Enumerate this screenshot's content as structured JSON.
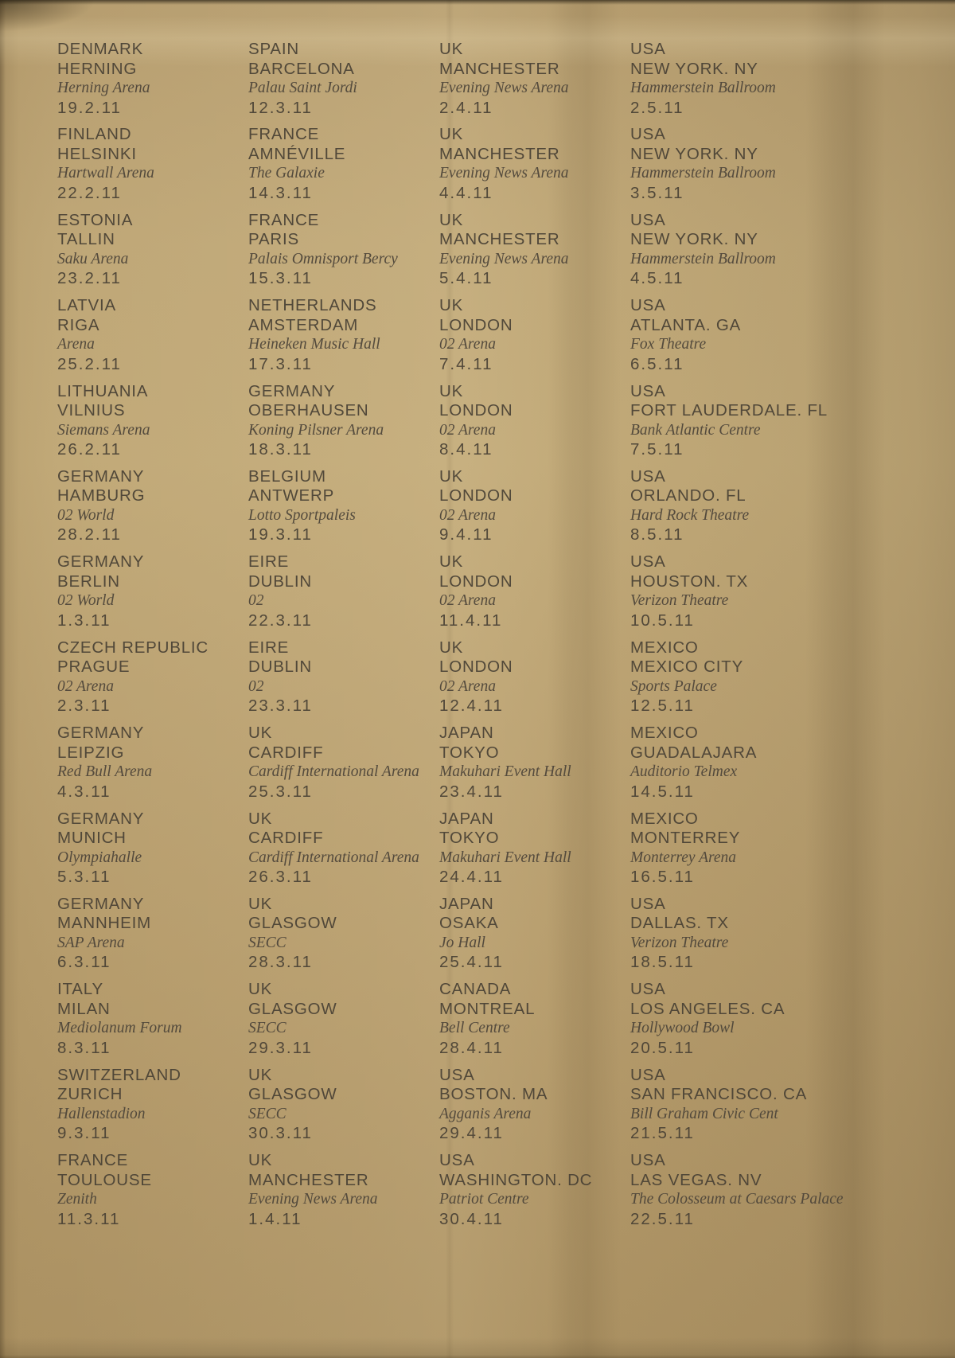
{
  "colors": {
    "paper_gold": "#bca374",
    "paper_edge_dark": "#7e6a47",
    "text_ink": "#4e463b"
  },
  "columns": [
    [
      {
        "country": "DENMARK",
        "city": "HERNING",
        "venue": "Herning Arena",
        "date": "19.2.11"
      },
      {
        "country": "FINLAND",
        "city": "HELSINKI",
        "venue": "Hartwall Arena",
        "date": "22.2.11"
      },
      {
        "country": "ESTONIA",
        "city": "TALLIN",
        "venue": "Saku Arena",
        "date": "23.2.11"
      },
      {
        "country": "LATVIA",
        "city": "RIGA",
        "venue": "Arena",
        "date": "25.2.11"
      },
      {
        "country": "LITHUANIA",
        "city": "VILNIUS",
        "venue": "Siemans Arena",
        "date": "26.2.11"
      },
      {
        "country": "GERMANY",
        "city": "HAMBURG",
        "venue": "02 World",
        "date": "28.2.11"
      },
      {
        "country": "GERMANY",
        "city": "BERLIN",
        "venue": "02 World",
        "date": "1.3.11"
      },
      {
        "country": "CZECH REPUBLIC",
        "city": "PRAGUE",
        "venue": "02 Arena",
        "date": "2.3.11"
      },
      {
        "country": "GERMANY",
        "city": "LEIPZIG",
        "venue": "Red Bull Arena",
        "date": "4.3.11"
      },
      {
        "country": "GERMANY",
        "city": "MUNICH",
        "venue": "Olympiahalle",
        "date": "5.3.11"
      },
      {
        "country": "GERMANY",
        "city": "MANNHEIM",
        "venue": "SAP Arena",
        "date": "6.3.11"
      },
      {
        "country": "ITALY",
        "city": "MILAN",
        "venue": "Mediolanum Forum",
        "date": "8.3.11"
      },
      {
        "country": "SWITZERLAND",
        "city": "ZURICH",
        "venue": "Hallenstadion",
        "date": "9.3.11"
      },
      {
        "country": "FRANCE",
        "city": "TOULOUSE",
        "venue": "Zenith",
        "date": "11.3.11"
      }
    ],
    [
      {
        "country": "SPAIN",
        "city": "BARCELONA",
        "venue": "Palau Saint Jordi",
        "date": "12.3.11"
      },
      {
        "country": "FRANCE",
        "city": "AMNÉVILLE",
        "venue": "The Galaxie",
        "date": "14.3.11"
      },
      {
        "country": "FRANCE",
        "city": "PARIS",
        "venue": "Palais Omnisport Bercy",
        "date": "15.3.11"
      },
      {
        "country": "NETHERLANDS",
        "city": "AMSTERDAM",
        "venue": "Heineken Music Hall",
        "date": "17.3.11"
      },
      {
        "country": "GERMANY",
        "city": "OBERHAUSEN",
        "venue": "Koning Pilsner Arena",
        "date": "18.3.11"
      },
      {
        "country": "BELGIUM",
        "city": "ANTWERP",
        "venue": "Lotto Sportpaleis",
        "date": "19.3.11"
      },
      {
        "country": "EIRE",
        "city": "DUBLIN",
        "venue": "02",
        "date": "22.3.11"
      },
      {
        "country": "EIRE",
        "city": "DUBLIN",
        "venue": "02",
        "date": "23.3.11"
      },
      {
        "country": "UK",
        "city": "CARDIFF",
        "venue": "Cardiff International Arena",
        "date": "25.3.11"
      },
      {
        "country": "UK",
        "city": "CARDIFF",
        "venue": "Cardiff International Arena",
        "date": "26.3.11"
      },
      {
        "country": "UK",
        "city": "GLASGOW",
        "venue": "SECC",
        "date": "28.3.11"
      },
      {
        "country": "UK",
        "city": "GLASGOW",
        "venue": "SECC",
        "date": "29.3.11"
      },
      {
        "country": "UK",
        "city": "GLASGOW",
        "venue": "SECC",
        "date": "30.3.11"
      },
      {
        "country": "UK",
        "city": "MANCHESTER",
        "venue": "Evening News Arena",
        "date": "1.4.11"
      }
    ],
    [
      {
        "country": "UK",
        "city": "MANCHESTER",
        "venue": "Evening News Arena",
        "date": "2.4.11"
      },
      {
        "country": "UK",
        "city": "MANCHESTER",
        "venue": "Evening News Arena",
        "date": "4.4.11"
      },
      {
        "country": "UK",
        "city": "MANCHESTER",
        "venue": "Evening News Arena",
        "date": "5.4.11"
      },
      {
        "country": "UK",
        "city": "LONDON",
        "venue": "02 Arena",
        "date": "7.4.11"
      },
      {
        "country": "UK",
        "city": "LONDON",
        "venue": "02 Arena",
        "date": "8.4.11"
      },
      {
        "country": "UK",
        "city": "LONDON",
        "venue": "02 Arena",
        "date": "9.4.11"
      },
      {
        "country": "UK",
        "city": "LONDON",
        "venue": "02 Arena",
        "date": "11.4.11"
      },
      {
        "country": "UK",
        "city": "LONDON",
        "venue": "02 Arena",
        "date": "12.4.11"
      },
      {
        "country": "JAPAN",
        "city": "TOKYO",
        "venue": "Makuhari Event Hall",
        "date": "23.4.11"
      },
      {
        "country": "JAPAN",
        "city": "TOKYO",
        "venue": "Makuhari Event Hall",
        "date": "24.4.11"
      },
      {
        "country": "JAPAN",
        "city": "OSAKA",
        "venue": "Jo Hall",
        "date": "25.4.11"
      },
      {
        "country": "CANADA",
        "city": "MONTREAL",
        "venue": "Bell Centre",
        "date": "28.4.11"
      },
      {
        "country": "USA",
        "city": "BOSTON. MA",
        "venue": "Agganis Arena",
        "date": "29.4.11"
      },
      {
        "country": "USA",
        "city": "WASHINGTON. DC",
        "venue": "Patriot Centre",
        "date": "30.4.11"
      }
    ],
    [
      {
        "country": "USA",
        "city": "NEW YORK. NY",
        "venue": "Hammerstein Ballroom",
        "date": "2.5.11"
      },
      {
        "country": "USA",
        "city": "NEW YORK. NY",
        "venue": "Hammerstein Ballroom",
        "date": "3.5.11"
      },
      {
        "country": "USA",
        "city": "NEW YORK. NY",
        "venue": "Hammerstein Ballroom",
        "date": "4.5.11"
      },
      {
        "country": "USA",
        "city": "ATLANTA. GA",
        "venue": "Fox Theatre",
        "date": "6.5.11"
      },
      {
        "country": "USA",
        "city": "FORT LAUDERDALE. FL",
        "venue": "Bank Atlantic Centre",
        "date": "7.5.11"
      },
      {
        "country": "USA",
        "city": "ORLANDO. FL",
        "venue": "Hard Rock Theatre",
        "date": "8.5.11"
      },
      {
        "country": "USA",
        "city": "HOUSTON. TX",
        "venue": "Verizon Theatre",
        "date": "10.5.11"
      },
      {
        "country": "MEXICO",
        "city": "MEXICO CITY",
        "venue": "Sports Palace",
        "date": "12.5.11"
      },
      {
        "country": "MEXICO",
        "city": "GUADALAJARA",
        "venue": "Auditorio Telmex",
        "date": "14.5.11"
      },
      {
        "country": "MEXICO",
        "city": "MONTERREY",
        "venue": "Monterrey Arena",
        "date": "16.5.11"
      },
      {
        "country": "USA",
        "city": "DALLAS. TX",
        "venue": "Verizon Theatre",
        "date": "18.5.11"
      },
      {
        "country": "USA",
        "city": "LOS ANGELES. CA",
        "venue": "Hollywood Bowl",
        "date": "20.5.11"
      },
      {
        "country": "USA",
        "city": "SAN FRANCISCO. CA",
        "venue": "Bill Graham Civic Cent",
        "date": "21.5.11"
      },
      {
        "country": "USA",
        "city": "LAS VEGAS. NV",
        "venue": "The Colosseum at Caesars Palace",
        "date": "22.5.11"
      }
    ]
  ]
}
